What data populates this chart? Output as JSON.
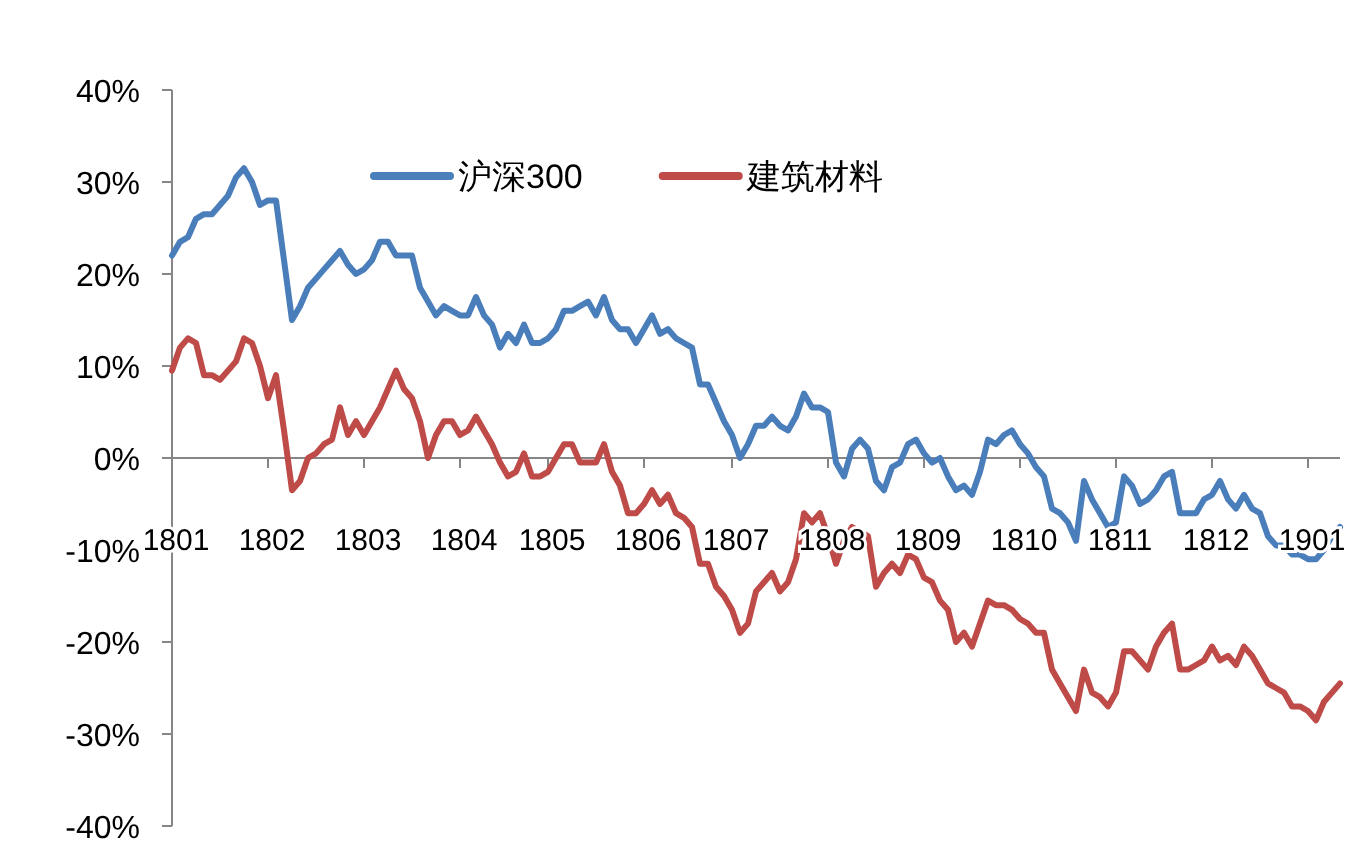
{
  "chart_data": {
    "type": "line",
    "legend": "top",
    "ylim": [
      -40,
      40
    ],
    "yticks": [
      {
        "value": -40,
        "label": "-40%"
      },
      {
        "value": -30,
        "label": "-30%"
      },
      {
        "value": -20,
        "label": "-20%"
      },
      {
        "value": -10,
        "label": "-10%"
      },
      {
        "value": 0,
        "label": "0%"
      },
      {
        "value": 10,
        "label": "10%"
      },
      {
        "value": 20,
        "label": "20%"
      },
      {
        "value": 30,
        "label": "30%"
      },
      {
        "value": 40,
        "label": "40%"
      }
    ],
    "categories": [
      "1801",
      null,
      null,
      null,
      null,
      null,
      null,
      null,
      null,
      null,
      null,
      null,
      "1802",
      null,
      null,
      null,
      null,
      null,
      null,
      null,
      null,
      null,
      null,
      null,
      "1803",
      null,
      null,
      null,
      null,
      null,
      null,
      null,
      null,
      null,
      null,
      null,
      "1804",
      null,
      null,
      null,
      null,
      null,
      null,
      null,
      null,
      null,
      null,
      "1805",
      null,
      null,
      null,
      null,
      null,
      null,
      null,
      null,
      null,
      null,
      null,
      "1806",
      null,
      null,
      null,
      null,
      null,
      null,
      null,
      null,
      null,
      null,
      "1807",
      null,
      null,
      null,
      null,
      null,
      null,
      null,
      null,
      null,
      null,
      null,
      "1808",
      null,
      null,
      null,
      null,
      null,
      null,
      null,
      null,
      null,
      null,
      null,
      "1809",
      null,
      null,
      null,
      null,
      null,
      null,
      null,
      null,
      null,
      null,
      null,
      "1810",
      null,
      null,
      null,
      null,
      null,
      null,
      null,
      null,
      null,
      null,
      null,
      "1811",
      null,
      null,
      null,
      null,
      null,
      null,
      null,
      null,
      null,
      null,
      null,
      "1812",
      null,
      null,
      null,
      null,
      null,
      null,
      null,
      null,
      null,
      null,
      null,
      "1901",
      null,
      null,
      null,
      null
    ],
    "series": [
      {
        "name": "沪深300",
        "color": "#4a7ebb",
        "values": [
          22,
          23.5,
          24,
          26,
          26.5,
          26.5,
          27.5,
          28.5,
          30.5,
          31.5,
          30,
          27.5,
          28,
          28,
          21.5,
          15,
          16.5,
          18.5,
          19.5,
          20.5,
          21.5,
          22.5,
          21,
          20,
          20.5,
          21.5,
          23.5,
          23.5,
          22,
          22,
          22,
          18.5,
          17,
          15.5,
          16.5,
          16,
          15.5,
          15.5,
          17.5,
          15.5,
          14.5,
          12,
          13.5,
          12.5,
          14.5,
          12.5,
          12.5,
          13,
          14,
          16,
          16,
          16.5,
          17,
          15.5,
          17.5,
          15,
          14,
          14,
          12.5,
          14,
          15.5,
          13.5,
          14,
          13,
          12.5,
          12,
          8,
          8,
          6,
          4,
          2.5,
          0,
          1.5,
          3.5,
          3.5,
          4.5,
          3.5,
          3,
          4.5,
          7,
          5.5,
          5.5,
          5,
          -0.5,
          -2,
          1,
          2,
          1,
          -2.5,
          -3.5,
          -1,
          -0.5,
          1.5,
          2,
          0.5,
          -0.5,
          0,
          -2,
          -3.5,
          -3,
          -4,
          -1.5,
          2,
          1.5,
          2.5,
          3,
          1.5,
          0.5,
          -1,
          -2,
          -5.5,
          -6,
          -7,
          -9,
          -2.5,
          -4.5,
          -6,
          -7.5,
          -7,
          -2,
          -3,
          -5,
          -4.5,
          -3.5,
          -2,
          -1.5,
          -6,
          -6,
          -6,
          -4.5,
          -4,
          -2.5,
          -4.5,
          -5.5,
          -4,
          -5.5,
          -6,
          -8.5,
          -9.5,
          -9.5,
          -10.5,
          -10.5,
          -11,
          -11,
          -10,
          -8.5,
          -7.5
        ]
      },
      {
        "name": "建筑材料",
        "color": "#be4b48",
        "values": [
          9.5,
          12,
          13,
          12.5,
          9,
          9,
          8.5,
          9.5,
          10.5,
          13,
          12.5,
          10,
          6.5,
          9,
          3,
          -3.5,
          -2.5,
          0,
          0.5,
          1.5,
          2,
          5.5,
          2.5,
          4,
          2.5,
          4,
          5.5,
          7.5,
          9.5,
          7.5,
          6.5,
          4,
          0,
          2.5,
          4,
          4,
          2.5,
          3,
          4.5,
          3,
          1.5,
          -0.5,
          -2,
          -1.5,
          0.5,
          -2,
          -2,
          -1.5,
          0,
          1.5,
          1.5,
          -0.5,
          -0.5,
          -0.5,
          1.5,
          -1.5,
          -3,
          -6,
          -6,
          -5,
          -3.5,
          -5,
          -4,
          -6,
          -6.5,
          -7.5,
          -11.5,
          -11.5,
          -14,
          -15,
          -16.5,
          -19,
          -18,
          -14.5,
          -13.5,
          -12.5,
          -14.5,
          -13.5,
          -11,
          -6,
          -7,
          -6,
          -8.5,
          -11.5,
          -9,
          -7.5,
          -8,
          -8.5,
          -14,
          -12.5,
          -11.5,
          -12.5,
          -10.5,
          -11,
          -13,
          -13.5,
          -15.5,
          -16.5,
          -20,
          -19,
          -20.5,
          -18,
          -15.5,
          -16,
          -16,
          -16.5,
          -17.5,
          -18,
          -19,
          -19,
          -23,
          -24.5,
          -26,
          -27.5,
          -23,
          -25.5,
          -26,
          -27,
          -25.5,
          -21,
          -21,
          -22,
          -23,
          -20.5,
          -19,
          -18,
          -23,
          -23,
          -22.5,
          -22,
          -20.5,
          -22,
          -21.5,
          -22.5,
          -20.5,
          -21.5,
          -23,
          -24.5,
          -25,
          -25.5,
          -27,
          -27,
          -27.5,
          -28.5,
          -26.5,
          -25.5,
          -24.5
        ]
      }
    ]
  }
}
